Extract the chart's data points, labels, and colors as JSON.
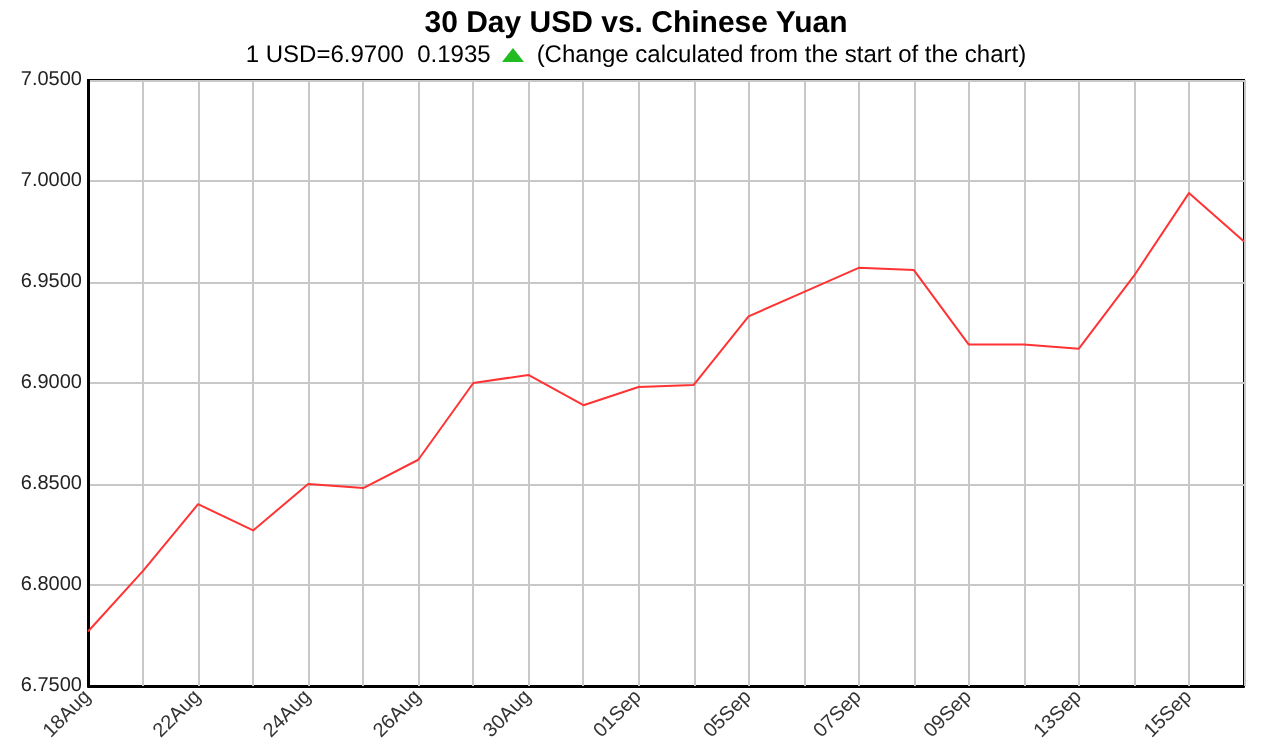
{
  "chart_data": {
    "type": "line",
    "title": "30 Day USD vs. Chinese Yuan",
    "subtitle": "1 USD=6.9700  0.1935",
    "annotations": [
      "(Change calculated from the start of the chart)"
    ],
    "categories": [
      "18Aug",
      null,
      "22Aug",
      null,
      "24Aug",
      null,
      "26Aug",
      null,
      "30Aug",
      null,
      "01Sep",
      null,
      "05Sep",
      null,
      "07Sep",
      null,
      "09Sep",
      null,
      "13Sep",
      null,
      "15Sep",
      null
    ],
    "series": [
      {
        "color": "#ff3333",
        "values": [
          6.777,
          6.807,
          6.84,
          6.827,
          6.85,
          6.848,
          6.862,
          6.9,
          6.904,
          6.889,
          6.898,
          6.899,
          6.933,
          6.945,
          6.957,
          6.956,
          6.919,
          6.919,
          6.917,
          6.953,
          6.994,
          6.97
        ]
      }
    ],
    "ylim": [
      6.75,
      7.05
    ],
    "yticks": [
      {
        "value": 6.75,
        "label": "6.7500"
      },
      {
        "value": 6.8,
        "label": "6.8000"
      },
      {
        "value": 6.85,
        "label": "6.8500"
      },
      {
        "value": 6.9,
        "label": "6.9000"
      },
      {
        "value": 6.95,
        "label": "6.9500"
      },
      {
        "value": 7.0,
        "label": "7.0000"
      },
      {
        "value": 7.05,
        "label": "7.0500"
      }
    ],
    "grid": true,
    "marker": "none",
    "line_style": "solid"
  }
}
